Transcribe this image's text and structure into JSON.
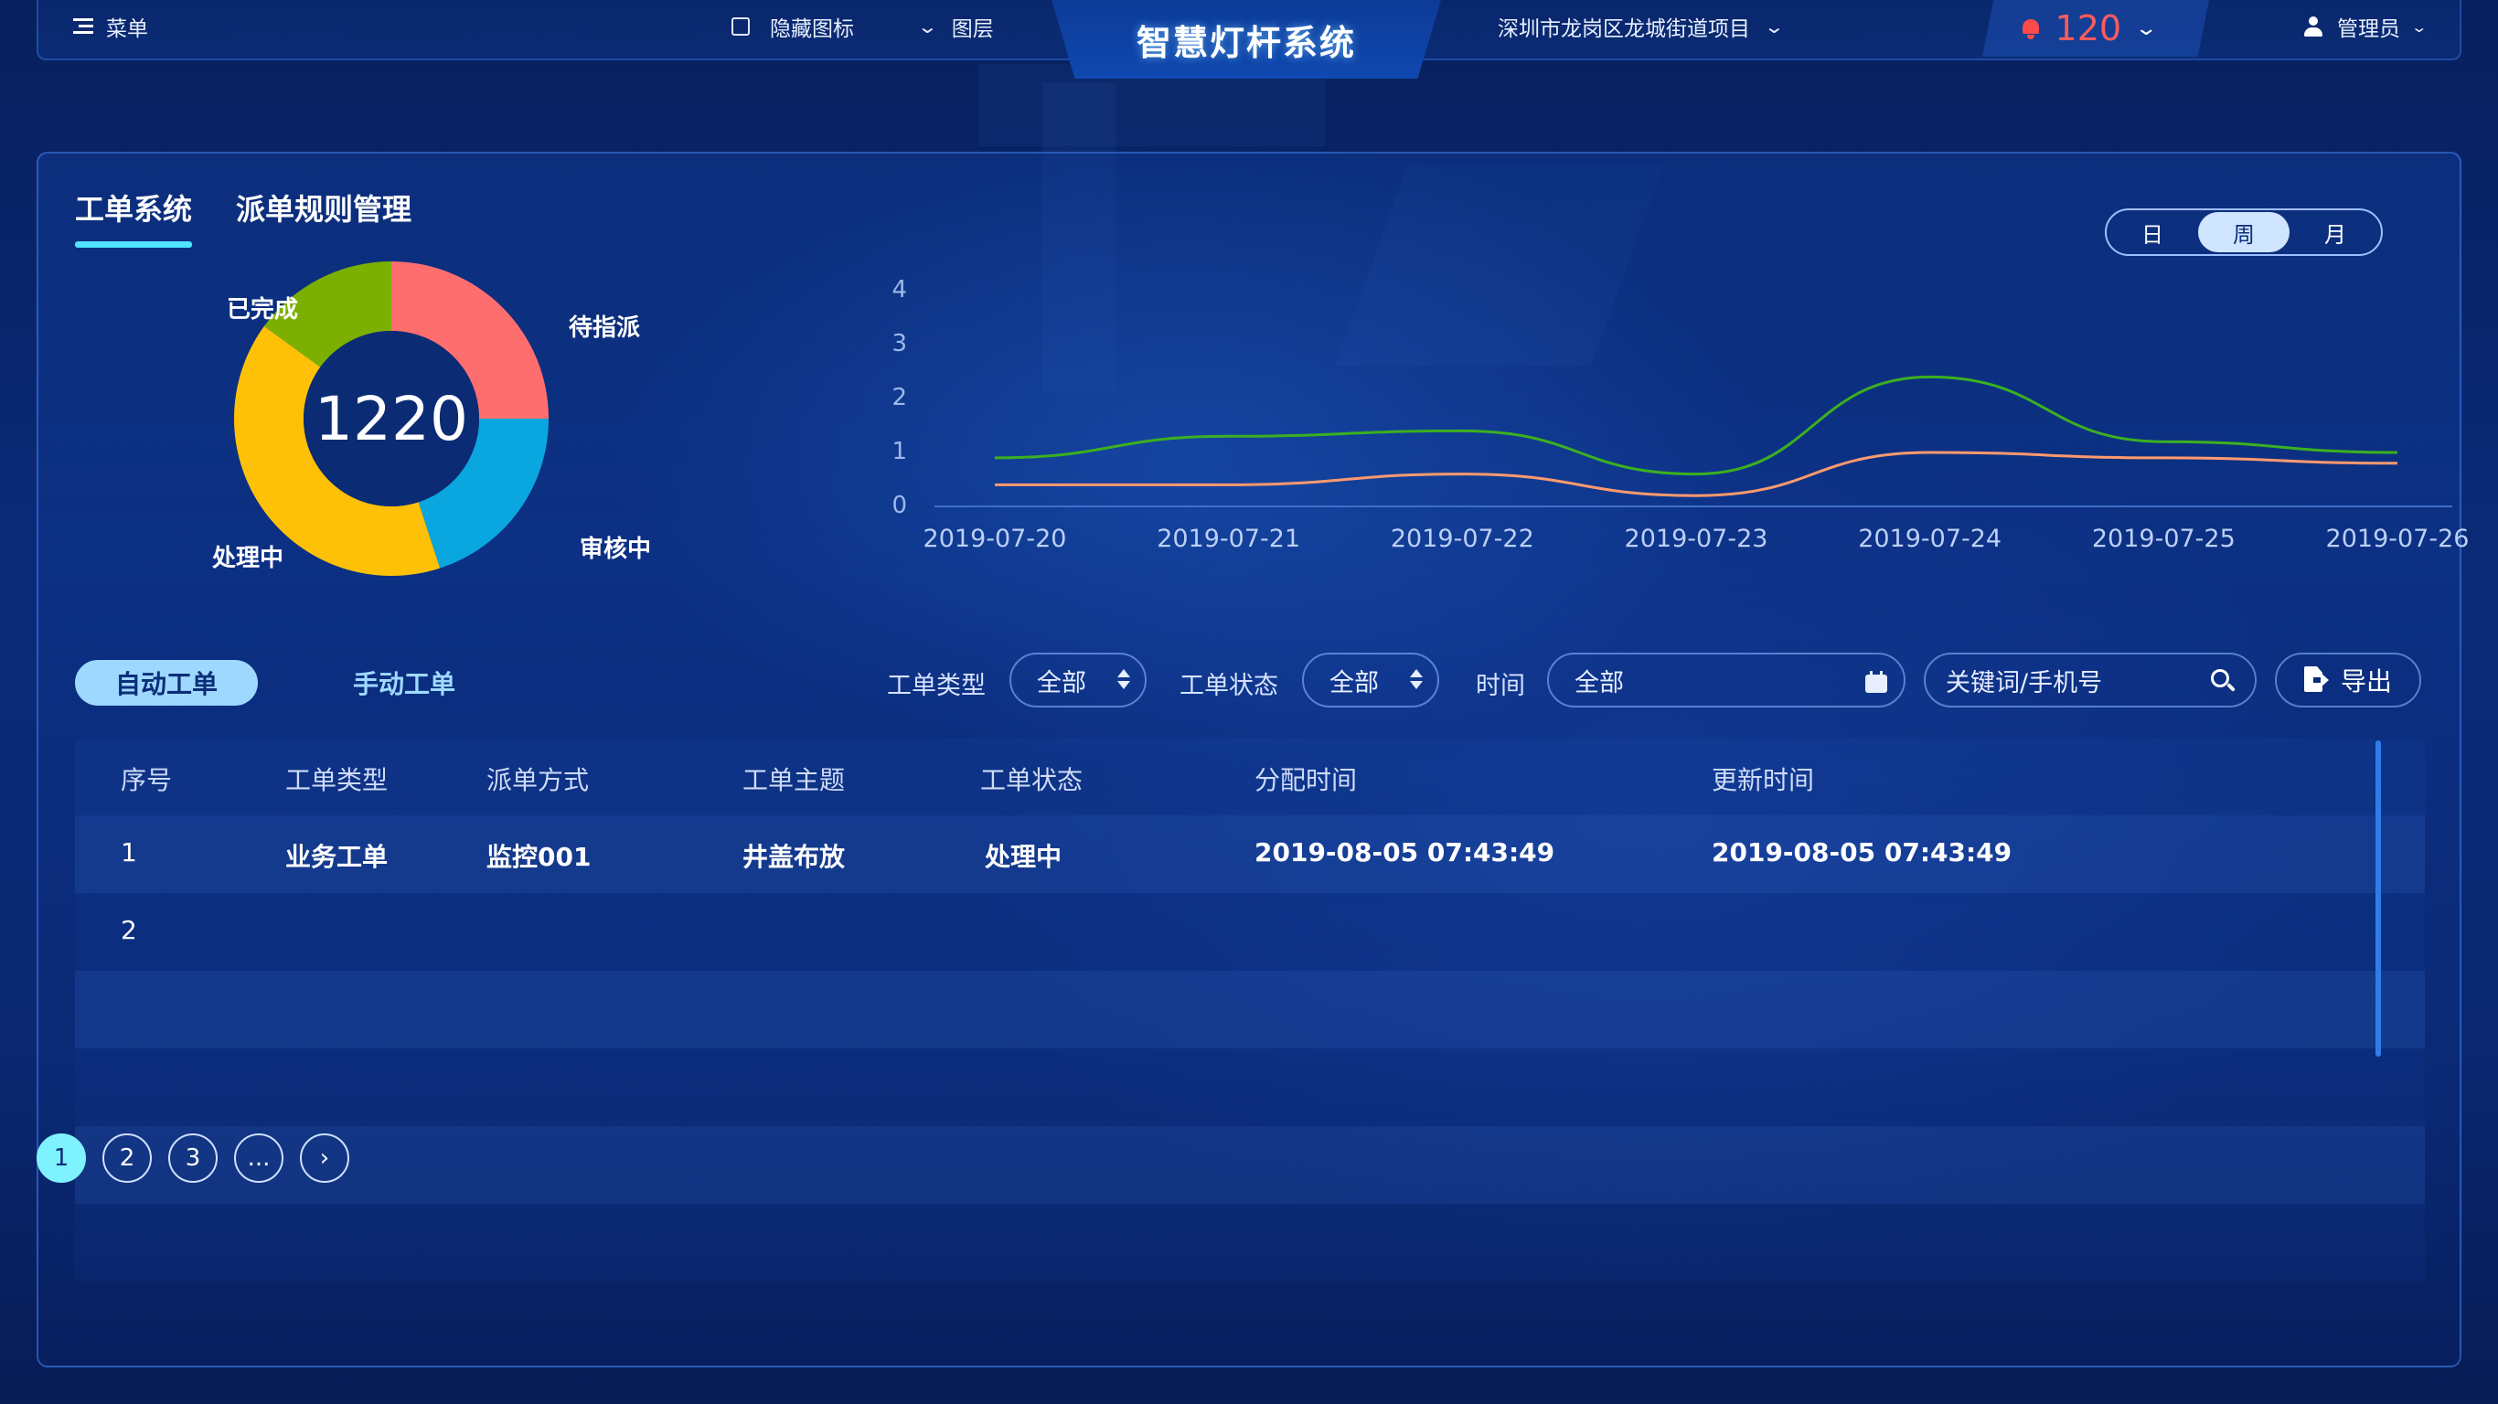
{
  "topbar": {
    "menu_label": "菜单",
    "hide_icons_label": "隐藏图标",
    "layers_label": "图层",
    "title": "智慧灯杆系统",
    "project_label": "深圳市龙岗区龙城街道项目",
    "alarm_count": "120",
    "user_label": "管理员"
  },
  "tabs": {
    "work_order": "工单系统",
    "dispatch_rules": "派单规则管理"
  },
  "period": {
    "day": "日",
    "week": "周",
    "month": "月",
    "selected": "周"
  },
  "donut": {
    "total": "1220",
    "segments": [
      {
        "label": "待指派",
        "value": 0.25,
        "color": "#ff6e6e"
      },
      {
        "label": "审核中",
        "value": 0.2,
        "color": "#0aa6e0"
      },
      {
        "label": "处理中",
        "value": 0.4,
        "color": "#ffc107"
      },
      {
        "label": "已完成",
        "value": 0.15,
        "color": "#7cb000"
      }
    ]
  },
  "chart_data": {
    "type": "line",
    "x": [
      "2019-07-20",
      "2019-07-21",
      "2019-07-22",
      "2019-07-23",
      "2019-07-24",
      "2019-07-25",
      "2019-07-26"
    ],
    "ylim": [
      0,
      4
    ],
    "y_ticks": [
      "0",
      "1",
      "2",
      "3",
      "4"
    ],
    "series": [
      {
        "values": [
          0.9,
          1.3,
          1.4,
          0.6,
          2.4,
          1.2,
          1.0
        ],
        "color": "#3bb020"
      },
      {
        "values": [
          0.4,
          0.4,
          0.6,
          0.2,
          1.0,
          0.9,
          0.8
        ],
        "color": "#ff9a6e"
      }
    ],
    "grid": false,
    "title": "",
    "xlabel": "",
    "ylabel": ""
  },
  "filters": {
    "auto_tab": "自动工单",
    "manual_tab": "手动工单",
    "type_label": "工单类型",
    "type_value": "全部",
    "status_label": "工单状态",
    "status_value": "全部",
    "time_label": "时间",
    "time_value": "全部",
    "search_placeholder": "关键词/手机号",
    "export_label": "导出"
  },
  "table": {
    "headers": [
      "序号",
      "工单类型",
      "派单方式",
      "工单主题",
      "工单状态",
      "分配时间",
      "更新时间"
    ],
    "rows": [
      [
        "1",
        "业务工单",
        "监控001",
        "井盖布放",
        "处理中",
        "2019-08-05 07:43:49",
        "2019-08-05 07:43:49"
      ],
      [
        "2",
        "",
        "",
        "",
        "",
        "",
        ""
      ],
      [
        "",
        "",
        "",
        "",
        "",
        "",
        ""
      ],
      [
        "",
        "",
        "",
        "",
        "",
        "",
        ""
      ],
      [
        "",
        "",
        "",
        "",
        "",
        "",
        ""
      ],
      [
        "",
        "",
        "",
        "",
        "",
        "",
        ""
      ]
    ]
  },
  "pagination": {
    "pages": [
      "1",
      "2",
      "3",
      "..."
    ],
    "current": "1"
  }
}
